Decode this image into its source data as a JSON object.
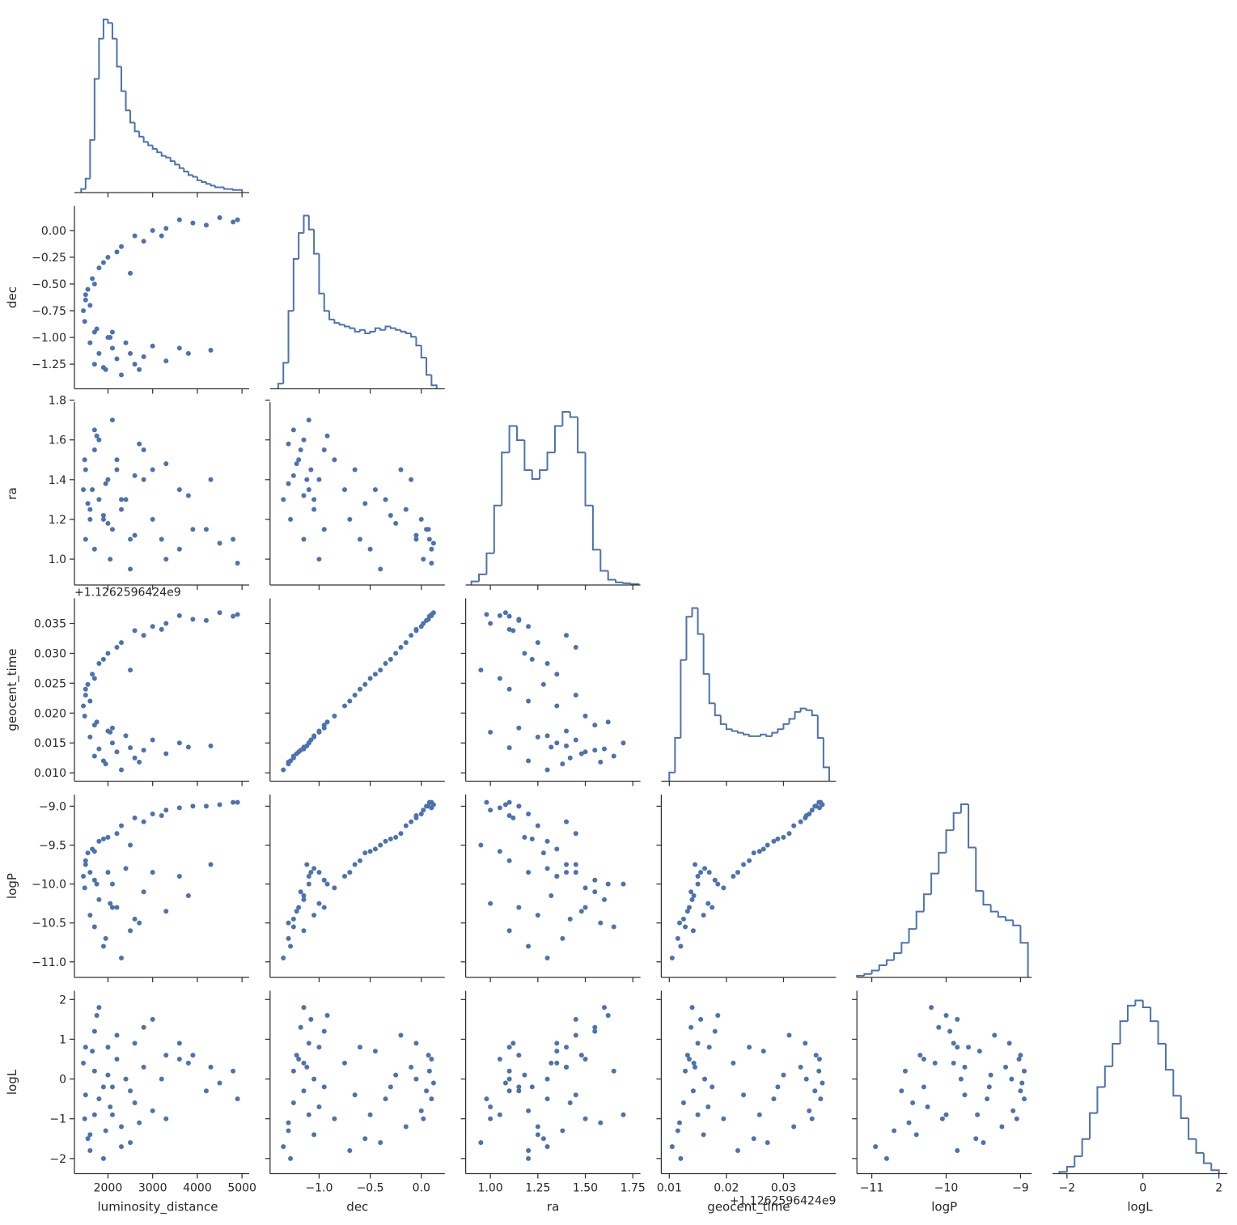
{
  "chart_data": {
    "type": "corner",
    "color": "#4c72b0",
    "variables": [
      {
        "name": "luminosity_distance",
        "lim": [
          1250,
          5160
        ],
        "xticks": [
          2000,
          3000,
          4000,
          5000
        ],
        "bins": [
          1400,
          1500,
          1600,
          1700,
          1800,
          1900,
          2000,
          2100,
          2200,
          2300,
          2400,
          2500,
          2600,
          2700,
          2800,
          2900,
          3000,
          3100,
          3200,
          3300,
          3400,
          3500,
          3600,
          3700,
          3800,
          3900,
          4000,
          4100,
          4200,
          4300,
          4400,
          4500,
          4600,
          4700,
          4800,
          4900,
          5000
        ],
        "counts": [
          2,
          8,
          30,
          65,
          88,
          99,
          97,
          88,
          72,
          58,
          47,
          40,
          35,
          32,
          29,
          27,
          25,
          23,
          21,
          20,
          18,
          16,
          14,
          12,
          10,
          9,
          7,
          6,
          5,
          4,
          3,
          3,
          2,
          2,
          1.5,
          1.5
        ],
        "samples": [
          4800,
          4200,
          3600,
          3000,
          2600,
          2300,
          2000,
          1800,
          1650,
          1550,
          4500,
          2800,
          3300,
          2200,
          1900,
          3900,
          1500,
          1450,
          1480,
          1600,
          1700,
          2000,
          2400,
          3000,
          3600,
          4300,
          1800,
          2200,
          2600,
          1950,
          2300,
          1700,
          2800,
          3300,
          2100,
          1600,
          2500,
          1900,
          3800,
          2050,
          1750,
          2700,
          4900,
          2500,
          3200,
          1700,
          1500,
          2100
        ]
      },
      {
        "name": "dec",
        "lim": [
          -1.48,
          0.23
        ],
        "xticks": [
          {
            "value": -1,
            "label": "−1.0"
          },
          {
            "value": -0.5,
            "label": "−0.5"
          },
          {
            "value": 0,
            "label": "0.0"
          }
        ],
        "yticks": [
          {
            "value": 0,
            "label": "0.00"
          },
          {
            "value": -0.25,
            "label": "−0.25"
          },
          {
            "value": -0.5,
            "label": "−0.50"
          },
          {
            "value": -0.75,
            "label": "−0.75"
          },
          {
            "value": -1,
            "label": "−1.00"
          },
          {
            "value": -1.25,
            "label": "−1.25"
          }
        ],
        "bins": [
          -1.4,
          -1.35,
          -1.3,
          -1.25,
          -1.2,
          -1.15,
          -1.1,
          -1.05,
          -1,
          -0.95,
          -0.9,
          -0.85,
          -0.8,
          -0.75,
          -0.7,
          -0.65,
          -0.6,
          -0.55,
          -0.5,
          -0.45,
          -0.4,
          -0.35,
          -0.3,
          -0.25,
          -0.2,
          -0.15,
          -0.1,
          -0.05,
          0,
          0.05,
          0.1,
          0.15
        ],
        "counts": [
          3,
          15,
          45,
          75,
          90,
          100,
          92,
          78,
          55,
          45,
          40,
          38,
          37,
          36,
          35,
          33,
          34,
          32,
          33,
          35,
          34,
          36,
          35,
          34,
          33,
          32,
          30,
          25,
          18,
          8,
          2
        ],
        "samples": [
          0.08,
          0.05,
          0.1,
          0,
          -0.05,
          -0.15,
          -0.25,
          -0.35,
          -0.45,
          -0.55,
          0.12,
          -0.1,
          0.02,
          -0.2,
          -0.3,
          0.07,
          -0.65,
          -0.75,
          -0.85,
          -0.7,
          -0.95,
          -1,
          -1.05,
          -1.08,
          -1.1,
          -1.12,
          -1.15,
          -1.2,
          -1.25,
          -1.3,
          -1.35,
          -1.25,
          -1.18,
          -1.22,
          -1.1,
          -1.05,
          -1.15,
          -1.28,
          -1.15,
          -1,
          -0.92,
          -1.3,
          0.1,
          -0.4,
          -0.05,
          -0.5,
          -0.6,
          -0.95
        ]
      },
      {
        "name": "ra",
        "lim": [
          0.87,
          1.79
        ],
        "xticks": [
          {
            "value": 1,
            "label": "1.00"
          },
          1.25,
          {
            "value": 1.5,
            "label": "1.50"
          },
          1.75
        ],
        "yticks": [
          {
            "value": 1,
            "label": "1.0"
          },
          1.2,
          1.4,
          1.6,
          1.8
        ],
        "bins": [
          0.9,
          0.94,
          0.98,
          1.02,
          1.06,
          1.1,
          1.14,
          1.18,
          1.22,
          1.26,
          1.3,
          1.34,
          1.38,
          1.42,
          1.46,
          1.5,
          1.54,
          1.58,
          1.62,
          1.66,
          1.7,
          1.74,
          1.78
        ],
        "counts": [
          2,
          6,
          18,
          45,
          75,
          90,
          82,
          65,
          60,
          65,
          75,
          90,
          98,
          95,
          75,
          45,
          20,
          8,
          3,
          1.5,
          1,
          0.5
        ],
        "samples": [
          1.1,
          1.15,
          1.05,
          1.2,
          1.12,
          1.25,
          1.18,
          1.3,
          1.35,
          1.28,
          1.08,
          1.4,
          1,
          1.45,
          1.22,
          1.15,
          1.45,
          1.35,
          1.5,
          1.2,
          1.55,
          1.4,
          1.3,
          1.45,
          1.35,
          1.4,
          1.6,
          1.5,
          1.42,
          1.38,
          1.3,
          1.65,
          1.55,
          1.48,
          1.7,
          1.25,
          1.1,
          1.2,
          1.32,
          1,
          1.62,
          1.58,
          0.98,
          0.95,
          1.1,
          1.05,
          1.1,
          1.15
        ]
      },
      {
        "name": "geocent_time",
        "offset_text": "+1.1262596424e9",
        "lim": [
          0.0086,
          0.0392
        ],
        "xticks": [
          0.01,
          0.02,
          0.03
        ],
        "yticks": [
          {
            "value": 0.01,
            "label": "0.010"
          },
          0.015,
          {
            "value": 0.02,
            "label": "0.020"
          },
          0.025,
          {
            "value": 0.03,
            "label": "0.030"
          },
          0.035
        ],
        "bins": [
          0.01,
          0.011,
          0.012,
          0.013,
          0.014,
          0.015,
          0.016,
          0.017,
          0.018,
          0.019,
          0.02,
          0.021,
          0.022,
          0.023,
          0.024,
          0.025,
          0.026,
          0.027,
          0.028,
          0.029,
          0.03,
          0.031,
          0.032,
          0.033,
          0.034,
          0.035,
          0.036,
          0.037,
          0.038
        ],
        "counts": [
          5,
          25,
          70,
          95,
          100,
          85,
          62,
          45,
          38,
          33,
          30,
          29,
          28,
          27,
          26,
          26,
          27,
          26,
          28,
          30,
          33,
          36,
          40,
          42,
          41,
          38,
          25,
          8
        ],
        "samples": [
          0.0362,
          0.0355,
          0.0363,
          0.0345,
          0.0338,
          0.0318,
          0.03,
          0.0283,
          0.0265,
          0.0248,
          0.0368,
          0.033,
          0.035,
          0.031,
          0.029,
          0.0357,
          0.023,
          0.0212,
          0.0195,
          0.022,
          0.018,
          0.017,
          0.0162,
          0.0155,
          0.015,
          0.0145,
          0.014,
          0.0135,
          0.0125,
          0.0115,
          0.0105,
          0.0128,
          0.0138,
          0.0132,
          0.015,
          0.016,
          0.0142,
          0.012,
          0.0143,
          0.0168,
          0.0185,
          0.0118,
          0.0365,
          0.0272,
          0.034,
          0.0258,
          0.024,
          0.0175
        ]
      },
      {
        "name": "logP",
        "lim": [
          -11.2,
          -8.85
        ],
        "xticks": [
          {
            "value": -11,
            "label": "−11"
          },
          {
            "value": -10,
            "label": "−10"
          },
          {
            "value": -9,
            "label": "−9"
          }
        ],
        "yticks": [
          {
            "value": -9,
            "label": "−9.0"
          },
          {
            "value": -9.5,
            "label": "−9.5"
          },
          {
            "value": -10,
            "label": "−10.0"
          },
          {
            "value": -10.5,
            "label": "−10.5"
          },
          {
            "value": -11,
            "label": "−11.0"
          }
        ],
        "bins": [
          -11.2,
          -11.1,
          -11,
          -10.9,
          -10.8,
          -10.7,
          -10.6,
          -10.5,
          -10.4,
          -10.3,
          -10.2,
          -10.1,
          -10,
          -9.9,
          -9.8,
          -9.7,
          -9.6,
          -9.5,
          -9.4,
          -9.3,
          -9.2,
          -9.1,
          -9,
          -8.9
        ],
        "counts": [
          1,
          2,
          4,
          7,
          10,
          14,
          20,
          28,
          38,
          48,
          60,
          72,
          85,
          95,
          100,
          75,
          50,
          42,
          38,
          35,
          33,
          30,
          20
        ],
        "samples": [
          -8.95,
          -9,
          -9.02,
          -9.1,
          -9.15,
          -9.25,
          -9.4,
          -9.45,
          -9.55,
          -9.6,
          -8.98,
          -9.2,
          -9.05,
          -9.35,
          -9.42,
          -9,
          -9.75,
          -9.9,
          -10.05,
          -9.85,
          -9.95,
          -9.85,
          -9.8,
          -9.85,
          -9.9,
          -9.75,
          -10.2,
          -10.3,
          -10.45,
          -10.7,
          -10.95,
          -10.55,
          -10.1,
          -10.35,
          -10,
          -10.4,
          -10.6,
          -10.8,
          -10.15,
          -10.25,
          -10,
          -10.5,
          -8.95,
          -9.5,
          -9.12,
          -9.58,
          -9.7,
          -10.3
        ]
      },
      {
        "name": "logL",
        "lim": [
          -2.38,
          2.22
        ],
        "xticks": [
          {
            "value": -2,
            "label": "−2"
          },
          0,
          2
        ],
        "yticks": [
          {
            "value": -2,
            "label": "−2"
          },
          {
            "value": -1,
            "label": "−1"
          },
          0,
          1,
          2
        ],
        "bins": [
          -2.2,
          -2,
          -1.8,
          -1.6,
          -1.4,
          -1.2,
          -1,
          -0.8,
          -0.6,
          -0.4,
          -0.2,
          0,
          0.2,
          0.4,
          0.6,
          0.8,
          1,
          1.2,
          1.4,
          1.6,
          1.8,
          2
        ],
        "counts": [
          1,
          4,
          10,
          20,
          35,
          50,
          62,
          75,
          88,
          97,
          100,
          96,
          88,
          75,
          60,
          45,
          32,
          20,
          12,
          6,
          2
        ],
        "samples": [
          0.2,
          -0.3,
          0.5,
          -0.8,
          0.9,
          -1.2,
          0.1,
          -0.5,
          0.7,
          -1.5,
          -0.1,
          0.3,
          -1,
          1.1,
          -0.2,
          0.6,
          -0.4,
          0.4,
          -1,
          -1.8,
          1.2,
          0.8,
          0,
          1.5,
          0.9,
          0.3,
          1.8,
          0.5,
          -0.6,
          -1.3,
          -1.7,
          0.2,
          1.3,
          0.6,
          -0.9,
          -1.4,
          -0.3,
          -2,
          0.4,
          -0.7,
          1.6,
          -1.1,
          -0.5,
          -1.6,
          0,
          -0.9,
          0.8,
          -0.2
        ]
      }
    ]
  }
}
